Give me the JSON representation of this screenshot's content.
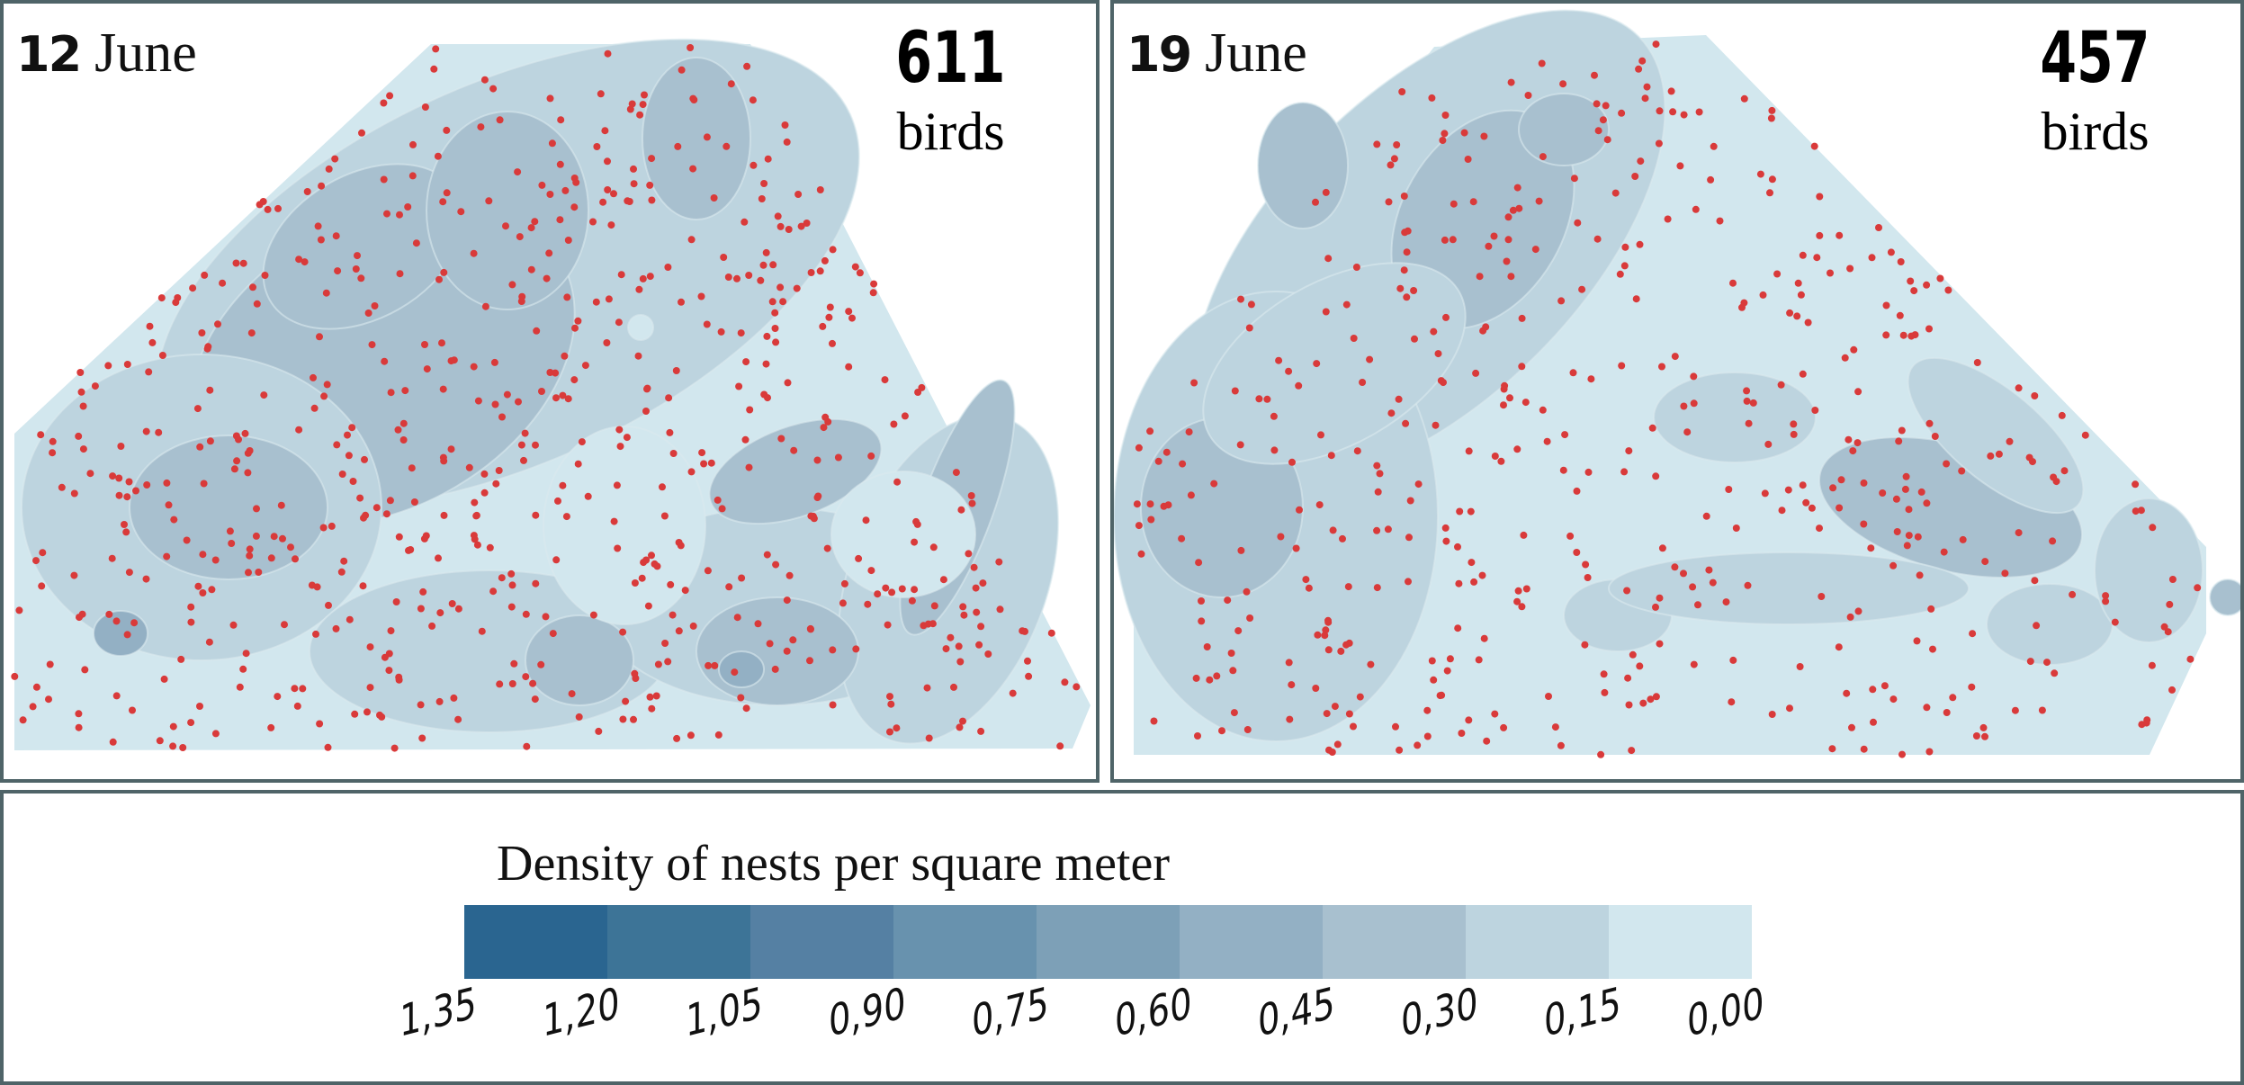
{
  "panels": [
    {
      "day": "12",
      "month": "June",
      "count": "611",
      "unit": "birds"
    },
    {
      "day": "19",
      "month": "June",
      "count": "457",
      "unit": "birds"
    }
  ],
  "legend": {
    "title": "Density of nests per square meter",
    "levels": [
      "1,35",
      "1,20",
      "1,05",
      "0,90",
      "0,75",
      "0,60",
      "0,45",
      "0,30",
      "0,15",
      "0,00"
    ],
    "colors": [
      "#2a6590",
      "#3d7497",
      "#5580a3",
      "#6892ae",
      "#7da0b7",
      "#93b0c4",
      "#a8c0cf",
      "#bdd4df",
      "#d2e7ee"
    ]
  },
  "colors": {
    "nest": "#d93a3a",
    "outline": "#4f6468"
  }
}
